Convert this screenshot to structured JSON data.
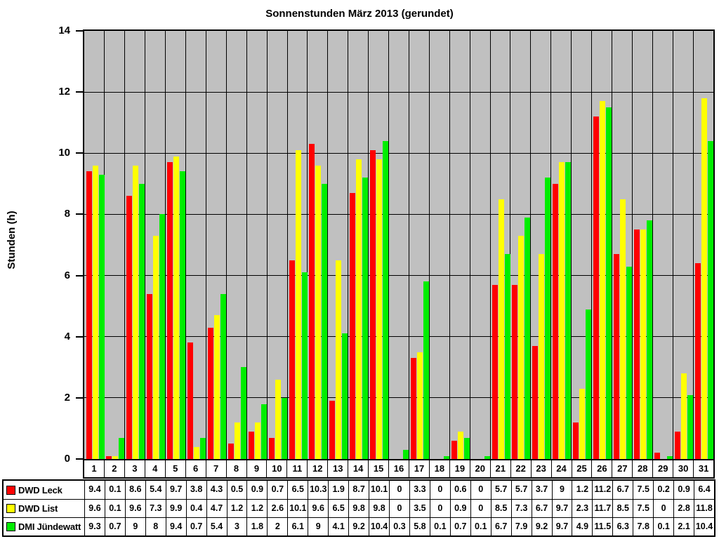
{
  "chart_data": {
    "type": "bar",
    "title": "Sonnenstunden März 2013 (gerundet)",
    "ylabel": "Stunden (h)",
    "xlabel": "",
    "ylim": [
      0,
      14
    ],
    "ytick_step": 2,
    "grid": true,
    "plot_background": "#C0C0C0",
    "legend_position": "data-table-left",
    "categories": [
      1,
      2,
      3,
      4,
      5,
      6,
      7,
      8,
      9,
      10,
      11,
      12,
      13,
      14,
      15,
      16,
      17,
      18,
      19,
      20,
      21,
      22,
      23,
      24,
      25,
      26,
      27,
      28,
      29,
      30,
      31
    ],
    "series": [
      {
        "name": "DWD Leck",
        "color": "#FF0000",
        "values": [
          9.4,
          0.1,
          8.6,
          5.4,
          9.7,
          3.8,
          4.3,
          0.5,
          0.9,
          0.7,
          6.5,
          10.3,
          1.9,
          8.7,
          10.1,
          0,
          3.3,
          0,
          0.6,
          0,
          5.7,
          5.7,
          3.7,
          9,
          1.2,
          11.2,
          6.7,
          7.5,
          0.2,
          0.9,
          6.4
        ]
      },
      {
        "name": "DWD List",
        "color": "#FFFF00",
        "values": [
          9.6,
          0.1,
          9.6,
          7.3,
          9.9,
          0.4,
          4.7,
          1.2,
          1.2,
          2.6,
          10.1,
          9.6,
          6.5,
          9.8,
          9.8,
          0,
          3.5,
          0,
          0.9,
          0,
          8.5,
          7.3,
          6.7,
          9.7,
          2.3,
          11.7,
          8.5,
          7.5,
          0,
          2.8,
          11.8
        ]
      },
      {
        "name": "DMI Jündewatt",
        "color": "#00EE00",
        "values": [
          9.3,
          0.7,
          9,
          8,
          9.4,
          0.7,
          5.4,
          3,
          1.8,
          2,
          6.1,
          9,
          4.1,
          9.2,
          10.4,
          0.3,
          5.8,
          0.1,
          0.7,
          0.1,
          6.7,
          7.9,
          9.2,
          9.7,
          4.9,
          11.5,
          6.3,
          7.8,
          0.1,
          2.1,
          10.4
        ]
      }
    ]
  }
}
